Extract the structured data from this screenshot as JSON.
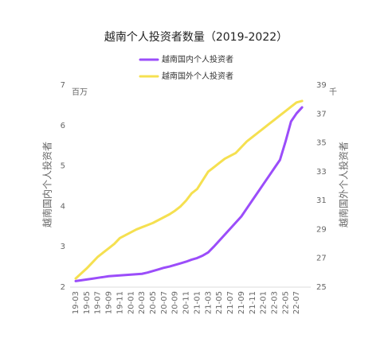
{
  "chart_data": {
    "type": "line",
    "title": "越南个人投资者数量（2019-2022）",
    "categories": [
      "19-03",
      null,
      "19-05",
      null,
      "19-07",
      null,
      "19-09",
      null,
      "19-11",
      null,
      "20-01",
      null,
      "20-03",
      null,
      "20-05",
      null,
      "20-07",
      null,
      "20-09",
      null,
      "20-11",
      null,
      "21-01",
      null,
      "21-03",
      null,
      "21-05",
      null,
      "21-07",
      null,
      "21-09",
      null,
      "21-11",
      null,
      "22-01",
      null,
      "22-03",
      null,
      "22-05",
      null,
      "22-07",
      null
    ],
    "series": [
      {
        "name": "越南国内个人投资者",
        "color": "#9b4dfa",
        "values": [
          2.15,
          2.17,
          2.19,
          2.21,
          2.23,
          2.25,
          2.27,
          2.28,
          2.29,
          2.3,
          2.31,
          2.32,
          2.33,
          2.36,
          2.4,
          2.44,
          2.48,
          2.51,
          2.55,
          2.59,
          2.63,
          2.68,
          2.72,
          2.78,
          2.86,
          3.0,
          3.15,
          3.3,
          3.45,
          3.6,
          3.75,
          3.95,
          4.15,
          4.35,
          4.55,
          4.75,
          4.95,
          5.15,
          5.6,
          6.1,
          6.3,
          6.45
        ]
      },
      {
        "name": "越南国外个人投资者",
        "color": "#f5e050",
        "axis": "y2",
        "values": [
          25.6,
          25.95,
          26.3,
          26.7,
          27.1,
          27.4,
          27.7,
          28.0,
          28.4,
          28.6,
          28.8,
          29.0,
          29.15,
          29.3,
          29.45,
          29.65,
          29.85,
          30.05,
          30.3,
          30.6,
          31.0,
          31.5,
          31.8,
          32.4,
          33.0,
          33.3,
          33.6,
          33.9,
          34.1,
          34.3,
          34.7,
          35.1,
          35.4,
          35.7,
          36.0,
          36.3,
          36.6,
          36.9,
          37.2,
          37.5,
          37.8,
          37.9
        ]
      }
    ],
    "y_label": "越南国内个人投资者",
    "y_unit": "百万",
    "y2_label": "越南国外个人投资者",
    "y2_unit": "千",
    "ylim": [
      2,
      7
    ],
    "yticks": [
      2,
      3,
      4,
      5,
      6,
      7
    ],
    "y2lim": [
      25,
      39
    ],
    "y2ticks": [
      25,
      27,
      29,
      31,
      33,
      35,
      37,
      39
    ]
  }
}
